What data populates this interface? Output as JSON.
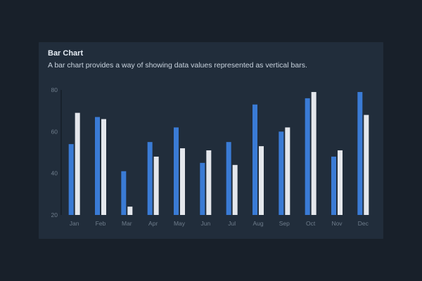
{
  "card": {
    "title": "Bar Chart",
    "description": "A bar chart provides a way of showing data values represented as vertical bars."
  },
  "colors": {
    "page_background": "#18202a",
    "card_background": "#212d3b",
    "series_primary": "#3a7bd5",
    "series_secondary": "#e4e7ec",
    "axis": "#131a22",
    "tick_text": "#6f7d8c"
  },
  "chart_data": {
    "type": "bar",
    "title": "Bar Chart",
    "subtitle": "A bar chart provides a way of showing data values represented as vertical bars.",
    "xlabel": "",
    "ylabel": "",
    "categories": [
      "Jan",
      "Feb",
      "Mar",
      "Apr",
      "May",
      "Jun",
      "Jul",
      "Aug",
      "Sep",
      "Oct",
      "Nov",
      "Dec"
    ],
    "series": [
      {
        "values": [
          54,
          67,
          41,
          55,
          62,
          45,
          55,
          73,
          60,
          76,
          48,
          79
        ]
      },
      {
        "values": [
          69,
          66,
          24,
          48,
          52,
          51,
          44,
          53,
          62,
          79,
          51,
          68
        ]
      }
    ],
    "ylim": [
      20,
      80
    ],
    "yticks": [
      20,
      40,
      60,
      80
    ],
    "grid": false,
    "legend": "none"
  }
}
